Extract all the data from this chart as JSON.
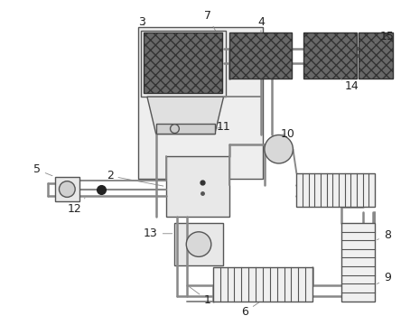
{
  "bg_color": "#ffffff",
  "edge_color": "#555555",
  "pipe_color": "#888888",
  "dark_panel": "#686868",
  "light_box": "#e8e8e8",
  "label_color": "#222222",
  "fig_width": 4.44,
  "fig_height": 3.6,
  "dpi": 100
}
